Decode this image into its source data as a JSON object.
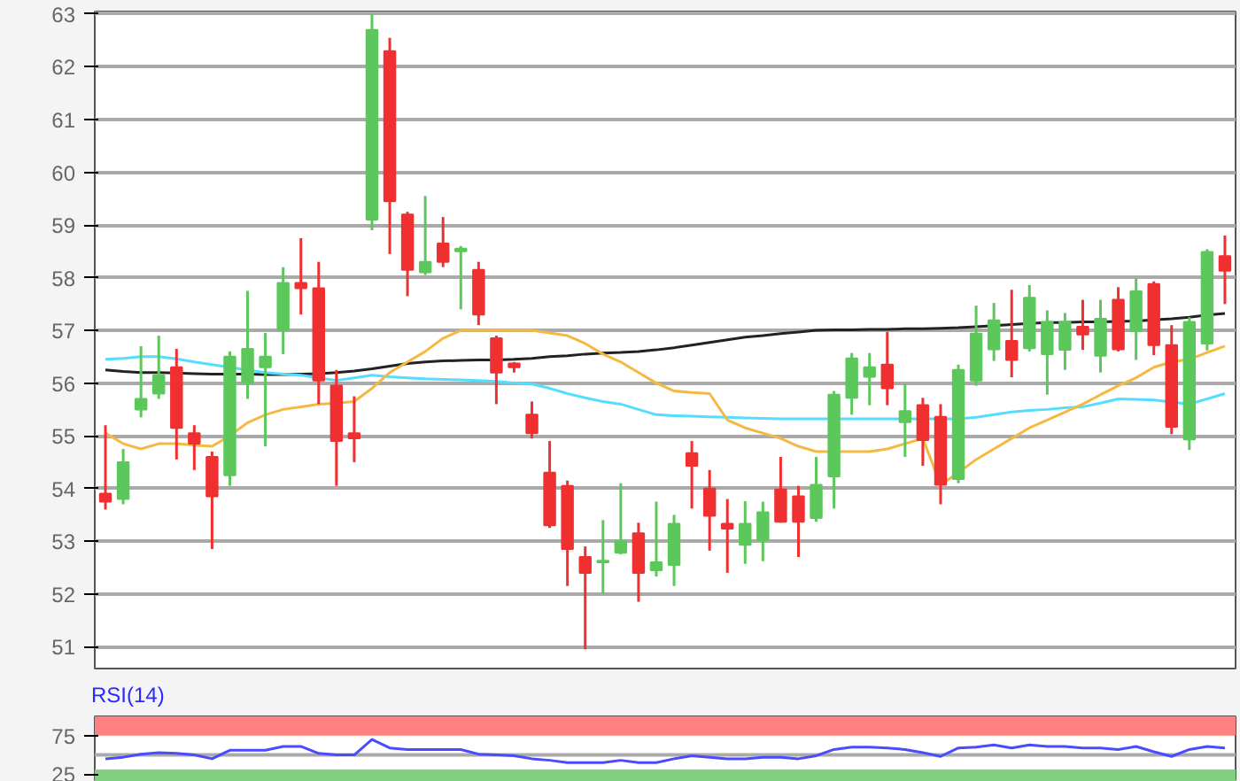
{
  "chart_data": [
    {
      "type": "candlestick",
      "categories": [
        null,
        null,
        null,
        null,
        null,
        null,
        null,
        null,
        null,
        null,
        null,
        null,
        null,
        null,
        null,
        null,
        null,
        null,
        null,
        null,
        null,
        null,
        null,
        null,
        null,
        null,
        null,
        null,
        null,
        null,
        null,
        null,
        null,
        null,
        null,
        null,
        null,
        null,
        null,
        null,
        null,
        null,
        null,
        null,
        null,
        null,
        null,
        null,
        null,
        null,
        null,
        null,
        null,
        null,
        null,
        null,
        null,
        null,
        null,
        null,
        null,
        null,
        null,
        null
      ],
      "ohlc": [
        [
          53.9,
          55.2,
          53.6,
          53.75
        ],
        [
          53.8,
          54.75,
          53.7,
          54.5
        ],
        [
          55.5,
          56.7,
          55.35,
          55.7
        ],
        [
          55.8,
          56.9,
          55.7,
          56.15
        ],
        [
          56.3,
          56.65,
          54.55,
          55.15
        ],
        [
          55.05,
          55.2,
          54.35,
          54.85
        ],
        [
          54.6,
          54.7,
          52.85,
          53.85
        ],
        [
          54.25,
          56.6,
          54.05,
          56.5
        ],
        [
          56.0,
          57.75,
          55.7,
          56.65
        ],
        [
          56.3,
          56.95,
          54.8,
          56.5
        ],
        [
          57.0,
          58.2,
          56.55,
          57.9
        ],
        [
          57.9,
          58.75,
          57.3,
          57.8
        ],
        [
          57.8,
          58.3,
          55.6,
          56.05
        ],
        [
          55.95,
          56.25,
          54.05,
          54.9
        ],
        [
          55.05,
          55.75,
          54.5,
          54.95
        ],
        [
          59.1,
          63.0,
          58.9,
          62.7
        ],
        [
          62.3,
          62.55,
          58.45,
          59.45
        ],
        [
          59.2,
          59.25,
          57.65,
          58.15
        ],
        [
          58.1,
          59.55,
          58.05,
          58.3
        ],
        [
          58.65,
          59.15,
          58.2,
          58.3
        ],
        [
          58.5,
          58.6,
          57.4,
          58.55
        ],
        [
          58.15,
          58.3,
          57.1,
          57.3
        ],
        [
          56.85,
          56.9,
          55.6,
          56.2
        ],
        [
          56.37,
          56.4,
          56.2,
          56.3
        ],
        [
          55.4,
          55.65,
          54.95,
          55.05
        ],
        [
          54.3,
          54.9,
          53.25,
          53.3
        ],
        [
          54.05,
          54.15,
          52.15,
          52.85
        ],
        [
          52.7,
          52.9,
          50.95,
          52.4
        ],
        [
          52.6,
          53.4,
          52.0,
          52.63
        ],
        [
          52.78,
          54.1,
          52.75,
          53.0
        ],
        [
          53.15,
          53.35,
          51.85,
          52.4
        ],
        [
          52.45,
          53.75,
          52.33,
          52.6
        ],
        [
          52.55,
          53.5,
          52.15,
          53.33
        ],
        [
          54.67,
          54.9,
          53.62,
          54.43
        ],
        [
          54.0,
          54.35,
          52.82,
          53.48
        ],
        [
          53.33,
          53.8,
          52.4,
          53.24
        ],
        [
          52.93,
          53.76,
          52.57,
          53.33
        ],
        [
          53.02,
          53.75,
          52.62,
          53.55
        ],
        [
          53.98,
          54.6,
          53.35,
          53.37
        ],
        [
          53.85,
          54.05,
          52.7,
          53.37
        ],
        [
          53.44,
          54.6,
          53.37,
          54.07
        ],
        [
          54.23,
          55.85,
          53.62,
          55.78
        ],
        [
          55.72,
          56.57,
          55.4,
          56.47
        ],
        [
          56.12,
          56.57,
          55.58,
          56.3
        ],
        [
          56.35,
          56.97,
          55.58,
          55.9
        ],
        [
          55.26,
          55.98,
          54.6,
          55.47
        ],
        [
          55.58,
          55.72,
          54.43,
          54.92
        ],
        [
          55.36,
          55.6,
          53.7,
          54.07
        ],
        [
          54.18,
          56.35,
          54.1,
          56.25
        ],
        [
          56.05,
          57.47,
          55.95,
          56.94
        ],
        [
          56.64,
          57.52,
          56.42,
          57.19
        ],
        [
          56.8,
          57.77,
          56.11,
          56.44
        ],
        [
          56.66,
          57.86,
          56.6,
          57.62
        ],
        [
          56.55,
          57.38,
          55.78,
          57.16
        ],
        [
          56.63,
          57.33,
          56.25,
          57.16
        ],
        [
          57.07,
          57.58,
          56.63,
          56.92
        ],
        [
          56.52,
          57.58,
          56.2,
          57.22
        ],
        [
          57.58,
          57.82,
          56.6,
          56.64
        ],
        [
          56.99,
          57.99,
          56.44,
          57.74
        ],
        [
          57.88,
          57.93,
          56.53,
          56.72
        ],
        [
          56.72,
          57.1,
          55.03,
          55.17
        ],
        [
          54.93,
          57.25,
          54.73,
          57.16
        ],
        [
          56.75,
          58.54,
          56.62,
          58.49
        ],
        [
          58.41,
          58.8,
          57.5,
          58.13
        ]
      ],
      "series": [
        {
          "type": "line",
          "color": "#222222",
          "values": [
            56.25,
            56.22,
            56.2,
            56.2,
            56.19,
            56.18,
            56.17,
            56.17,
            56.17,
            56.16,
            56.16,
            56.17,
            56.18,
            56.2,
            56.23,
            56.27,
            56.32,
            56.37,
            56.4,
            56.42,
            56.43,
            56.44,
            56.44,
            56.45,
            56.47,
            56.5,
            56.52,
            56.55,
            56.57,
            56.58,
            56.6,
            56.63,
            56.67,
            56.72,
            56.77,
            56.82,
            56.87,
            56.9,
            56.94,
            56.97,
            57.0,
            57.01,
            57.01,
            57.02,
            57.02,
            57.03,
            57.03,
            57.04,
            57.05,
            57.07,
            57.09,
            57.11,
            57.13,
            57.15,
            57.15,
            57.16,
            57.16,
            57.17,
            57.18,
            57.2,
            57.22,
            57.25,
            57.29,
            57.32
          ]
        },
        {
          "type": "line",
          "color": "#55ddff",
          "values": [
            56.45,
            56.47,
            56.5,
            56.5,
            56.46,
            56.4,
            56.35,
            56.3,
            56.25,
            56.2,
            56.17,
            56.15,
            56.1,
            56.05,
            56.1,
            56.15,
            56.12,
            56.1,
            56.08,
            56.07,
            56.06,
            56.05,
            56.03,
            56.0,
            55.98,
            55.9,
            55.8,
            55.72,
            55.65,
            55.6,
            55.5,
            55.4,
            55.38,
            55.37,
            55.36,
            55.35,
            55.34,
            55.33,
            55.32,
            55.32,
            55.32,
            55.32,
            55.32,
            55.32,
            55.32,
            55.32,
            55.32,
            55.32,
            55.32,
            55.35,
            55.4,
            55.45,
            55.48,
            55.5,
            55.53,
            55.55,
            55.62,
            55.7,
            55.69,
            55.68,
            55.64,
            55.6,
            55.7,
            55.8
          ]
        },
        {
          "type": "line",
          "color": "#f5b942",
          "values": [
            55.05,
            54.85,
            54.75,
            54.85,
            54.85,
            54.82,
            54.8,
            55.0,
            55.25,
            55.4,
            55.5,
            55.55,
            55.6,
            55.62,
            55.65,
            55.9,
            56.2,
            56.4,
            56.6,
            56.85,
            57.0,
            57.0,
            57.0,
            57.0,
            57.0,
            56.95,
            56.9,
            56.75,
            56.55,
            56.4,
            56.2,
            56.0,
            55.85,
            55.82,
            55.8,
            55.3,
            55.15,
            55.05,
            54.95,
            54.8,
            54.7,
            54.7,
            54.7,
            54.7,
            54.75,
            54.85,
            54.95,
            54.07,
            54.3,
            54.55,
            54.75,
            54.95,
            55.15,
            55.3,
            55.45,
            55.6,
            55.78,
            55.95,
            56.1,
            56.3,
            56.4,
            56.45,
            56.58,
            56.7
          ]
        }
      ],
      "ylim": [
        50.55,
        63.05
      ],
      "yticks": [
        51,
        52,
        53,
        54,
        55,
        56,
        57,
        58,
        59,
        60,
        61,
        62,
        63
      ],
      "grid": "y",
      "tick_labels": "y"
    },
    {
      "type": "line",
      "title": "RSI(14)",
      "categories": [
        null,
        null,
        null,
        null,
        null,
        null,
        null,
        null,
        null,
        null,
        null,
        null,
        null,
        null,
        null,
        null,
        null,
        null,
        null,
        null,
        null,
        null,
        null,
        null,
        null,
        null,
        null,
        null,
        null,
        null,
        null,
        null,
        null,
        null,
        null,
        null,
        null,
        null,
        null,
        null,
        null,
        null,
        null,
        null,
        null,
        null,
        null,
        null,
        null,
        null,
        null,
        null,
        null,
        null,
        null,
        null,
        null,
        null,
        null,
        null,
        null,
        null,
        null,
        null
      ],
      "series": [
        {
          "color": "#4a4aff",
          "values": [
            45,
            47,
            51,
            53,
            52,
            50,
            45,
            56,
            56,
            56,
            61,
            61,
            52,
            50,
            50,
            70,
            59,
            57,
            57,
            57,
            57,
            51,
            50,
            49,
            45,
            43,
            40,
            40,
            40,
            43,
            40,
            40,
            45,
            49,
            47,
            45,
            45,
            47,
            47,
            45,
            49,
            57,
            60,
            60,
            59,
            57,
            53,
            48,
            59,
            60,
            63,
            59,
            63,
            61,
            61,
            59,
            59,
            57,
            61,
            54,
            48,
            57,
            61,
            59
          ]
        }
      ],
      "ylim": [
        15,
        100
      ],
      "yticks": [
        25,
        75
      ],
      "tick_labels": "y",
      "bands": [
        {
          "axis": "y",
          "from": 75,
          "to": 100,
          "color": "#ff8080"
        },
        {
          "axis": "y",
          "from": 15,
          "to": 31,
          "color": "#80d080"
        }
      ],
      "ref_lines": [
        {
          "axis": "y",
          "value": 50,
          "color": "#aaaaaa"
        }
      ]
    }
  ]
}
